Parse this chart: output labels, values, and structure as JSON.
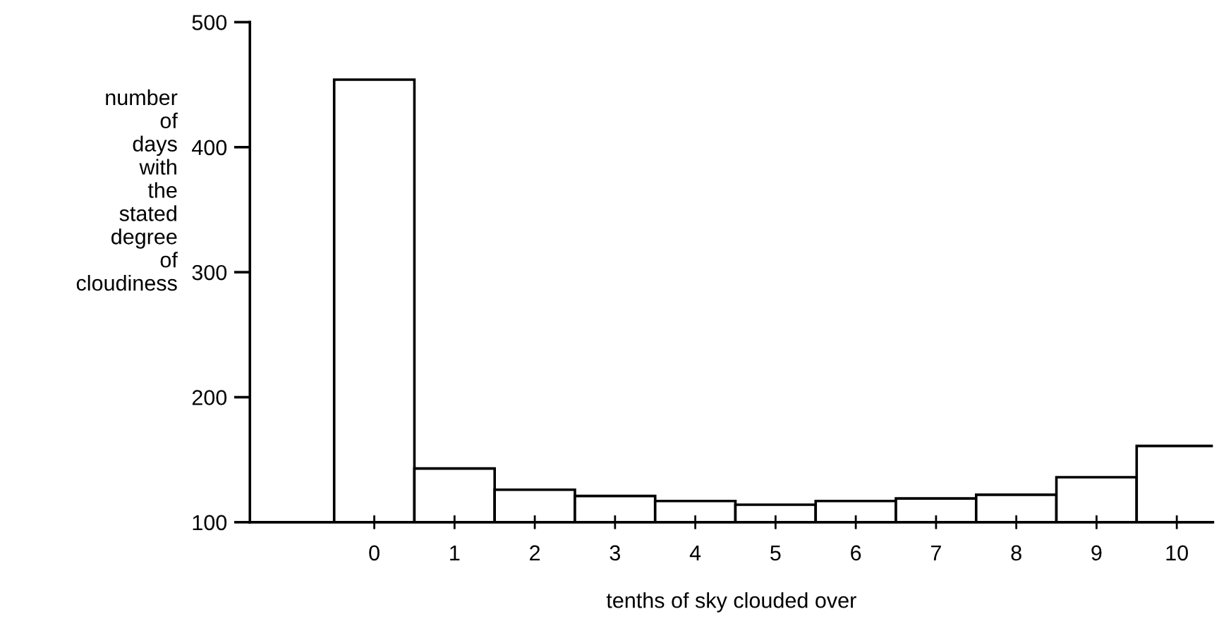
{
  "chart_data": {
    "type": "bar",
    "xlabel": "tenths of sky clouded over",
    "ylabel": "number\nof\ndays\nwith\nthe\nstated\ndegree\nof\ncloudiness",
    "categories": [
      "0",
      "1",
      "2",
      "3",
      "4",
      "5",
      "6",
      "7",
      "8",
      "9",
      "10"
    ],
    "values": [
      454,
      143,
      126,
      121,
      117,
      114,
      117,
      119,
      122,
      136,
      161
    ],
    "color": "#ffffff",
    "ylim": [
      100,
      500
    ],
    "yticks": [
      100,
      200,
      300,
      400,
      500
    ],
    "grid": false,
    "legend": false
  }
}
